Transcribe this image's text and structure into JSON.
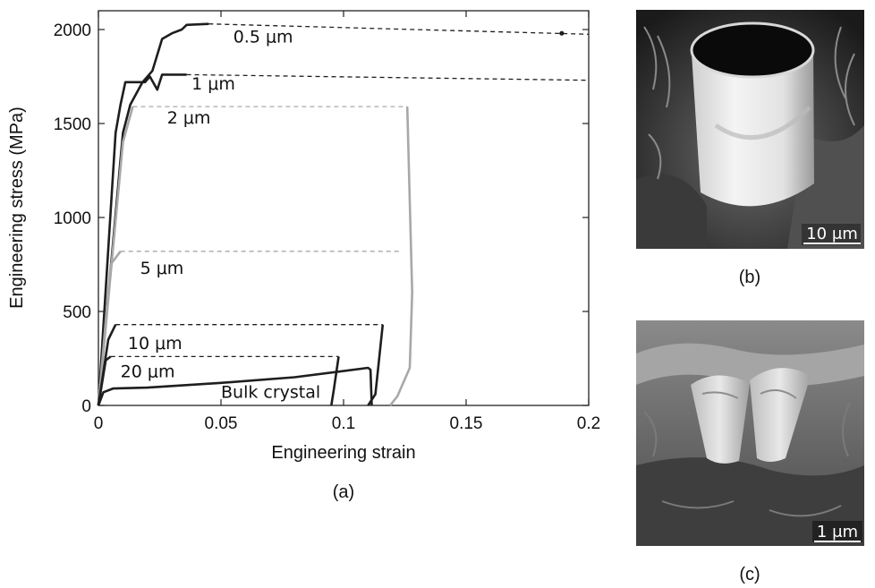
{
  "chart_data": {
    "type": "line",
    "title": "",
    "xlabel": "Engineering strain",
    "ylabel": "Engineering stress (MPa)",
    "xlim": [
      0,
      0.2
    ],
    "ylim": [
      0,
      2100
    ],
    "xticks": [
      "0",
      "0.05",
      "0.1",
      "0.15",
      "0.2"
    ],
    "xtick_values": [
      0,
      0.05,
      0.1,
      0.15,
      0.2
    ],
    "yticks": [
      "0",
      "500",
      "1000",
      "1500",
      "2000"
    ],
    "ytick_values": [
      0,
      500,
      1000,
      1500,
      2000
    ],
    "grid": false,
    "series": [
      {
        "name": "0.5 μm",
        "color": "#1e1e1e",
        "style": "solid",
        "points": [
          [
            0,
            0
          ],
          [
            0.01,
            1450
          ],
          [
            0.013,
            1600
          ],
          [
            0.018,
            1720
          ],
          [
            0.022,
            1780
          ],
          [
            0.026,
            1950
          ],
          [
            0.03,
            1980
          ],
          [
            0.034,
            2000
          ],
          [
            0.036,
            2025
          ],
          [
            0.045,
            2030
          ]
        ],
        "extension": {
          "style": "dashed",
          "points": [
            [
              0.045,
              2030
            ],
            [
              0.2,
              1975
            ]
          ],
          "marker": [
            0.189,
            1980
          ]
        }
      },
      {
        "name": "1 μm",
        "color": "#1e1e1e",
        "style": "solid",
        "points": [
          [
            0,
            0
          ],
          [
            0.007,
            1450
          ],
          [
            0.009,
            1600
          ],
          [
            0.011,
            1720
          ],
          [
            0.019,
            1720
          ],
          [
            0.021,
            1750
          ],
          [
            0.024,
            1680
          ],
          [
            0.026,
            1760
          ],
          [
            0.036,
            1760
          ]
        ],
        "extension": {
          "style": "dashed",
          "points": [
            [
              0.036,
              1760
            ],
            [
              0.2,
              1730
            ]
          ]
        }
      },
      {
        "name": "2 μm",
        "color": "#a8a8a8",
        "style": "solid",
        "points": [
          [
            0,
            0
          ],
          [
            0.01,
            1400
          ],
          [
            0.014,
            1590
          ]
        ],
        "extension": {
          "style": "dashed",
          "points": [
            [
              0.014,
              1590
            ],
            [
              0.126,
              1590
            ]
          ]
        },
        "unload": [
          [
            0.126,
            1590
          ],
          [
            0.128,
            600
          ],
          [
            0.127,
            200
          ],
          [
            0.122,
            50
          ],
          [
            0.119,
            0
          ]
        ]
      },
      {
        "name": "5 μm",
        "color": "#a8a8a8",
        "style": "solid",
        "points": [
          [
            0,
            0
          ],
          [
            0.005,
            750
          ],
          [
            0.009,
            820
          ]
        ],
        "extension": {
          "style": "dashed",
          "points": [
            [
              0.009,
              820
            ],
            [
              0.124,
              820
            ]
          ]
        }
      },
      {
        "name": "10 μm",
        "color": "#1e1e1e",
        "style": "solid",
        "points": [
          [
            0,
            0
          ],
          [
            0.004,
            350
          ],
          [
            0.007,
            430
          ]
        ],
        "extension": {
          "style": "dashed",
          "points": [
            [
              0.007,
              430
            ],
            [
              0.116,
              430
            ]
          ]
        },
        "unload": [
          [
            0.116,
            430
          ],
          [
            0.113,
            60
          ],
          [
            0.11,
            0
          ]
        ]
      },
      {
        "name": "20 μm",
        "color": "#1e1e1e",
        "style": "solid",
        "points": [
          [
            0,
            0
          ],
          [
            0.003,
            240
          ],
          [
            0.005,
            260
          ]
        ],
        "extension": {
          "style": "dashed",
          "points": [
            [
              0.005,
              260
            ],
            [
              0.098,
              260
            ]
          ]
        },
        "unload": [
          [
            0.098,
            260
          ],
          [
            0.096,
            80
          ],
          [
            0.095,
            0
          ]
        ]
      },
      {
        "name": "Bulk crystal",
        "color": "#1e1e1e",
        "style": "solid",
        "points": [
          [
            0,
            0
          ],
          [
            0.002,
            70
          ],
          [
            0.006,
            90
          ],
          [
            0.02,
            95
          ],
          [
            0.05,
            120
          ],
          [
            0.08,
            150
          ],
          [
            0.11,
            200
          ],
          [
            0.111,
            190
          ],
          [
            0.1115,
            0
          ]
        ]
      }
    ],
    "labels": [
      {
        "text": "0.5 μm",
        "x": 0.055,
        "y": 1930
      },
      {
        "text": "1 μm",
        "x": 0.038,
        "y": 1680
      },
      {
        "text": "2 μm",
        "x": 0.028,
        "y": 1500
      },
      {
        "text": "5 μm",
        "x": 0.017,
        "y": 700
      },
      {
        "text": "10 μm",
        "x": 0.012,
        "y": 300
      },
      {
        "text": "20 μm",
        "x": 0.009,
        "y": 150
      },
      {
        "text": "Bulk crystal",
        "x": 0.05,
        "y": 40
      }
    ]
  },
  "panels": {
    "a_label": "(a)",
    "b_label": "(b)",
    "c_label": "(c)",
    "b_scale": "10 μm",
    "c_scale": "1 μm"
  }
}
